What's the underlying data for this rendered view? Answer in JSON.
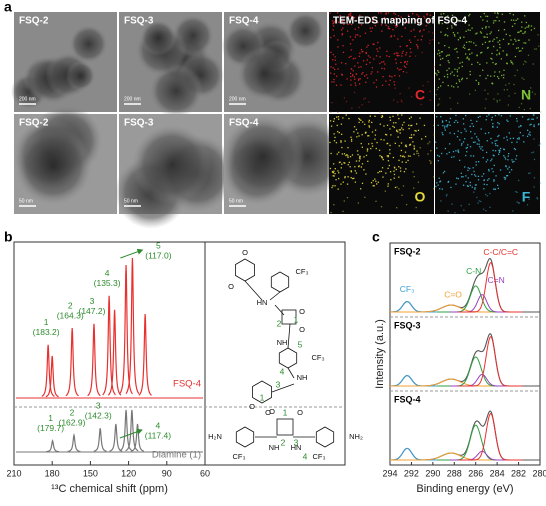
{
  "panel_a": {
    "label": "a",
    "tem_images": [
      {
        "title": "FSQ-2",
        "scale_bar": "200 nm"
      },
      {
        "title": "FSQ-3",
        "scale_bar": "200 nm"
      },
      {
        "title": "FSQ-4",
        "scale_bar": "200 nm"
      },
      {
        "title": "FSQ-2",
        "scale_bar": "50 nm"
      },
      {
        "title": "FSQ-3",
        "scale_bar": "50 nm"
      },
      {
        "title": "FSQ-4",
        "scale_bar": "50 nm"
      }
    ],
    "eds_title": "TEM-EDS mapping of FSQ-4",
    "eds_maps": [
      {
        "element": "C",
        "color": "#e0262a"
      },
      {
        "element": "N",
        "color": "#7fc23a"
      },
      {
        "element": "O",
        "color": "#e4d93a"
      },
      {
        "element": "F",
        "color": "#3cb6d6"
      }
    ]
  },
  "chart_data": [
    {
      "type": "nmr",
      "panel_label": "b",
      "xlabel": "¹³C chemical shift (ppm)",
      "xlim": [
        210,
        60
      ],
      "xticks": [
        210,
        180,
        150,
        120,
        90,
        60
      ],
      "ylim": [
        0,
        1
      ],
      "series": [
        {
          "name": "FSQ-4",
          "color": "#e8302f",
          "x": [
            183.2,
            180,
            164.3,
            147.2,
            135.3,
            131,
            122,
            117.0,
            107
          ],
          "values": [
            0.38,
            0.3,
            0.5,
            0.53,
            0.73,
            0.63,
            0.95,
            1.0,
            0.6
          ],
          "annotations": [
            {
              "number": "1",
              "x": 183.2,
              "label": "(183.2)"
            },
            {
              "number": "2",
              "x": 164.3,
              "label": "(164.3)"
            },
            {
              "number": "3",
              "x": 147.2,
              "label": "(147.2)"
            },
            {
              "number": "4",
              "x": 135.3,
              "label": "(135.3)"
            },
            {
              "number": "5",
              "x": 117.0,
              "label": "(117.0)"
            }
          ]
        },
        {
          "name": "Diamine (1)",
          "color": "#777777",
          "x": [
            179.7,
            162.9,
            142.3,
            130,
            122,
            117.4,
            113
          ],
          "values": [
            0.08,
            0.12,
            0.17,
            0.2,
            0.3,
            0.3,
            0.2
          ],
          "annotations": [
            {
              "number": "1",
              "x": 179.7,
              "label": "(179.7)"
            },
            {
              "number": "2",
              "x": 162.9,
              "label": "(162.9)"
            },
            {
              "number": "3",
              "x": 142.3,
              "label": "(142.3)"
            },
            {
              "number": "4",
              "x": 117.4,
              "label": "(117.4)"
            }
          ]
        }
      ],
      "structures": {
        "polymer": [
          "O",
          "O",
          "CF₃",
          "HN",
          "O",
          "O",
          "1",
          "2",
          "NH",
          "5",
          "CF₃",
          "4",
          "NH",
          "3",
          "1",
          "O",
          "O"
        ],
        "diamine": [
          "O",
          "1",
          "O",
          "H₂N",
          "NH₂",
          "NH",
          "2",
          "3",
          "HN",
          "CF₃",
          "4",
          "CF₃"
        ]
      }
    },
    {
      "type": "xps",
      "panel_label": "c",
      "xlabel": "Binding energy (eV)",
      "ylabel": "Intensity (a.u.)",
      "xlim": [
        294,
        280
      ],
      "xticks": [
        294,
        292,
        290,
        288,
        286,
        284,
        282,
        280
      ],
      "ylim": [
        0,
        1
      ],
      "components": [
        {
          "name": "CF₃",
          "color": "#3aa0d8",
          "center": 292.4,
          "fwhm": 1.0
        },
        {
          "name": "C=O",
          "color": "#f0a030",
          "center": 288.3,
          "fwhm": 2.0
        },
        {
          "name": "C-N",
          "color": "#2ea043",
          "center": 286.0,
          "fwhm": 1.2
        },
        {
          "name": "C=N",
          "color": "#9b3fbf",
          "center": 285.4,
          "fwhm": 1.0
        },
        {
          "name": "C-C/C=C",
          "color": "#e8302f",
          "center": 284.6,
          "fwhm": 1.0
        }
      ],
      "panels": [
        {
          "title": "FSQ-2",
          "heights": [
            0.18,
            0.12,
            0.45,
            0.3,
            0.85
          ]
        },
        {
          "title": "FSQ-3",
          "heights": [
            0.18,
            0.12,
            0.5,
            0.2,
            0.85
          ]
        },
        {
          "title": "FSQ-4",
          "heights": [
            0.2,
            0.12,
            0.6,
            0.15,
            0.8
          ]
        }
      ]
    }
  ]
}
